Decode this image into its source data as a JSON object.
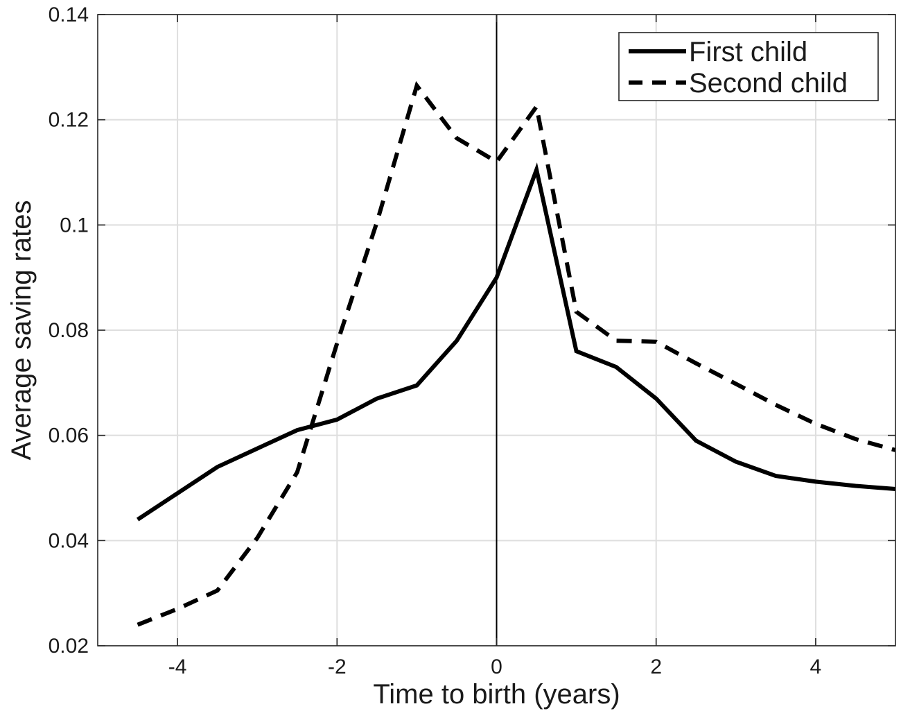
{
  "chart_data": {
    "type": "line",
    "title": "",
    "xlabel": "Time to birth (years)",
    "ylabel": "Average saving rates",
    "xlim": [
      -5,
      5
    ],
    "ylim": [
      0.02,
      0.14
    ],
    "xticks": [
      -4,
      -2,
      0,
      2,
      4
    ],
    "xtick_labels": [
      "-4",
      "-2",
      "0",
      "2",
      "4"
    ],
    "yticks": [
      0.02,
      0.04,
      0.06,
      0.08,
      0.1,
      0.12,
      0.14
    ],
    "ytick_labels": [
      "0.02",
      "0.04",
      "0.06",
      "0.08",
      "0.1",
      "0.12",
      "0.14"
    ],
    "grid": true,
    "reference_line_x": 0,
    "legend_position": "top-right",
    "series": [
      {
        "name": "First child",
        "style": "solid",
        "color": "#000000",
        "x": [
          -4.5,
          -4,
          -3.5,
          -3,
          -2.5,
          -2,
          -1.5,
          -1,
          -0.5,
          0,
          0.5,
          1,
          1.5,
          2,
          2.5,
          3,
          3.5,
          4,
          4.5,
          5
        ],
        "y": [
          0.044,
          0.049,
          0.054,
          0.0575,
          0.061,
          0.063,
          0.067,
          0.0695,
          0.078,
          0.09,
          0.1105,
          0.076,
          0.073,
          0.067,
          0.059,
          0.055,
          0.0523,
          0.0512,
          0.0504,
          0.0498
        ]
      },
      {
        "name": "Second child",
        "style": "dashed",
        "color": "#000000",
        "x": [
          -4.5,
          -4,
          -3.5,
          -3,
          -2.5,
          -2,
          -1.5,
          -1,
          -0.5,
          0,
          0.5,
          1,
          1.5,
          2,
          2.5,
          3,
          3.5,
          4,
          4.5,
          5
        ],
        "y": [
          0.024,
          0.027,
          0.0305,
          0.0405,
          0.053,
          0.0775,
          0.1005,
          0.1265,
          0.1165,
          0.112,
          0.1225,
          0.0835,
          0.078,
          0.0778,
          0.0737,
          0.0698,
          0.0658,
          0.0622,
          0.0593,
          0.0572
        ]
      }
    ]
  }
}
